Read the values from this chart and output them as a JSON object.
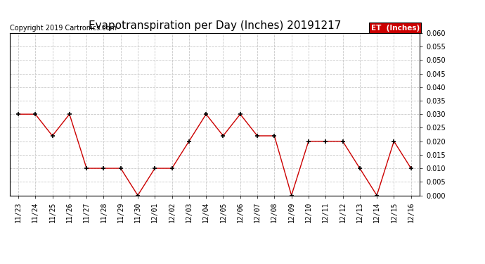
{
  "title": "Evapotranspiration per Day (Inches) 20191217",
  "copyright": "Copyright 2019 Cartronics.com",
  "legend_label": "ET  (Inches)",
  "legend_bg": "#cc0000",
  "legend_text_color": "#ffffff",
  "line_color": "#cc0000",
  "marker_color": "#000000",
  "background_color": "#ffffff",
  "grid_color": "#c8c8c8",
  "dates": [
    "11/23",
    "11/24",
    "11/25",
    "11/26",
    "11/27",
    "11/28",
    "11/29",
    "11/30",
    "12/01",
    "12/02",
    "12/03",
    "12/04",
    "12/05",
    "12/06",
    "12/07",
    "12/08",
    "12/09",
    "12/10",
    "12/11",
    "12/12",
    "12/13",
    "12/14",
    "12/15",
    "12/16"
  ],
  "values": [
    0.03,
    0.03,
    0.022,
    0.03,
    0.01,
    0.01,
    0.01,
    0.0,
    0.01,
    0.01,
    0.02,
    0.03,
    0.022,
    0.03,
    0.022,
    0.022,
    0.0,
    0.02,
    0.02,
    0.02,
    0.01,
    0.0,
    0.02,
    0.01
  ],
  "ylim": [
    0.0,
    0.06
  ],
  "yticks": [
    0.0,
    0.005,
    0.01,
    0.015,
    0.02,
    0.025,
    0.03,
    0.035,
    0.04,
    0.045,
    0.05,
    0.055,
    0.06
  ],
  "title_fontsize": 11,
  "tick_fontsize": 7,
  "copyright_fontsize": 7
}
